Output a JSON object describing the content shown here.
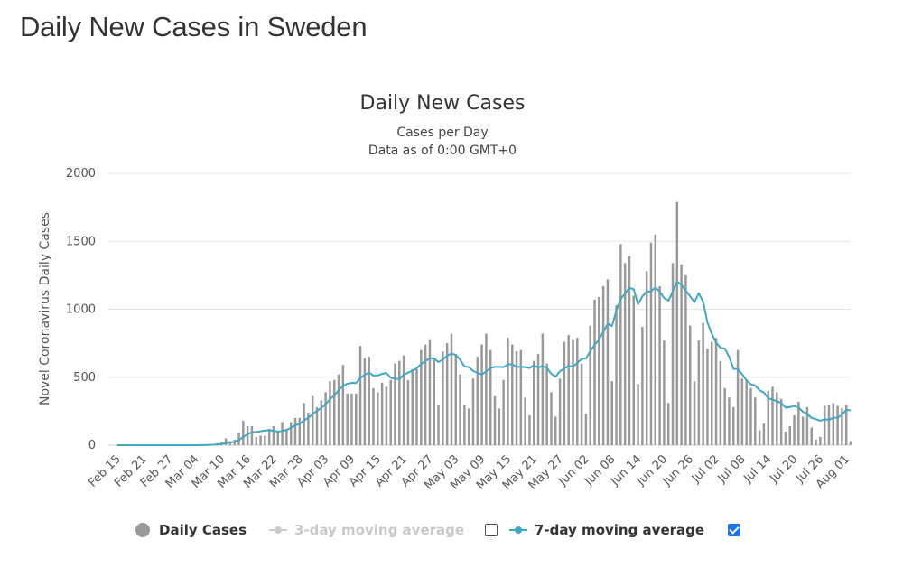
{
  "page": {
    "title": "Daily New Cases in Sweden"
  },
  "chart_data": {
    "type": "bar",
    "title": "Daily New Cases",
    "subtitle": "Cases per Day",
    "subtitle2": "Data as of 0:00 GMT+0",
    "ylabel": "Novel Coronavirus Daily Cases",
    "ylim": [
      0,
      2000
    ],
    "yticks": [
      0,
      500,
      1000,
      1500,
      2000
    ],
    "x_start": "2020-02-15",
    "x_tick_labels": [
      "Feb 15",
      "Feb 21",
      "Feb 27",
      "Mar 04",
      "Mar 10",
      "Mar 16",
      "Mar 22",
      "Mar 28",
      "Apr 03",
      "Apr 09",
      "Apr 15",
      "Apr 21",
      "Apr 27",
      "May 03",
      "May 09",
      "May 15",
      "May 21",
      "May 27",
      "Jun 02",
      "Jun 08",
      "Jun 14",
      "Jun 20",
      "Jun 26",
      "Jul 02",
      "Jul 08",
      "Jul 14",
      "Jul 20",
      "Jul 26",
      "Aug 01"
    ],
    "x_tick_every": 6,
    "grid": true,
    "legend_position": "bottom",
    "series": [
      {
        "name": "Daily Cases",
        "type": "bar",
        "color": "#999999",
        "values": [
          0,
          0,
          0,
          0,
          0,
          0,
          0,
          0,
          0,
          0,
          0,
          0,
          0,
          0,
          0,
          0,
          0,
          1,
          1,
          2,
          3,
          5,
          10,
          15,
          24,
          50,
          30,
          40,
          90,
          180,
          140,
          140,
          60,
          70,
          70,
          120,
          140,
          100,
          170,
          120,
          170,
          200,
          200,
          310,
          240,
          360,
          280,
          330,
          390,
          470,
          480,
          520,
          590,
          380,
          380,
          380,
          730,
          640,
          650,
          420,
          390,
          460,
          430,
          480,
          600,
          620,
          660,
          480,
          560,
          560,
          700,
          740,
          780,
          640,
          300,
          690,
          750,
          820,
          670,
          520,
          300,
          270,
          490,
          650,
          740,
          820,
          700,
          360,
          270,
          480,
          790,
          740,
          690,
          700,
          350,
          220,
          620,
          670,
          820,
          600,
          390,
          210,
          490,
          760,
          810,
          780,
          790,
          600,
          230,
          880,
          1070,
          1090,
          1170,
          1220,
          470,
          1030,
          1480,
          1340,
          1390,
          1100,
          450,
          870,
          1280,
          1490,
          1550,
          1170,
          770,
          310,
          1340,
          1790,
          1330,
          1250,
          880,
          470,
          770,
          900,
          710,
          760,
          790,
          620,
          420,
          350,
          280,
          700,
          490,
          480,
          420,
          350,
          110,
          160,
          400,
          430,
          390,
          340,
          100,
          140,
          220,
          320,
          210,
          280,
          130,
          40,
          60,
          290,
          300,
          310,
          290,
          270,
          300,
          30
        ]
      },
      {
        "name": "3-day moving average",
        "type": "line",
        "color": "#cccccc",
        "visible": false
      },
      {
        "name": "7-day moving average",
        "type": "line",
        "color": "#3fa7c4",
        "visible": true
      }
    ]
  },
  "legend": {
    "daily_label": "Daily Cases",
    "ma3_label": "3-day moving average",
    "ma7_label": "7-day moving average",
    "ma3_checked": false,
    "ma7_checked": true
  },
  "colors": {
    "bar": "#999999",
    "ma7": "#3fa7c4",
    "ma3": "#cccccc",
    "grid": "#e6e6e6",
    "checkbox": "#1a73e8"
  }
}
